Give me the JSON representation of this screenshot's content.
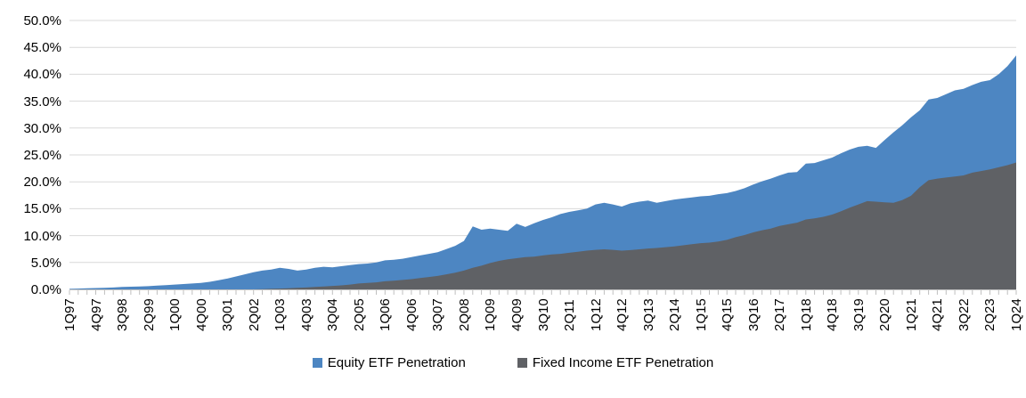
{
  "page": {
    "background": "#FFFFFF",
    "text_color": "#000000"
  },
  "chart_data": {
    "type": "area",
    "title": "",
    "grid": true,
    "grid_color": "#D9D9D9",
    "axis_color": "#BFBFBF",
    "legend_position": "bottom-center",
    "overlap_note": "overlaid areas (not stacked); Fixed Income drawn in front of Equity",
    "y_axis": {
      "min": 0,
      "max": 50,
      "step": 5,
      "unit": "%",
      "tick_labels_top_to_bottom": [
        "50.0%",
        "45.0%",
        "40.0%",
        "35.0%",
        "30.0%",
        "25.0%",
        "20.0%",
        "15.0%",
        "10.0%",
        "5.0%",
        "0.0%"
      ]
    },
    "x_axis": {
      "frequency": "quarterly",
      "start": "1Q97",
      "end": "1Q24",
      "points": 109,
      "label_every_n_points": 3,
      "tick_labels": [
        "1Q97",
        "4Q97",
        "3Q98",
        "2Q99",
        "1Q00",
        "4Q00",
        "3Q01",
        "2Q02",
        "1Q03",
        "4Q03",
        "3Q04",
        "2Q05",
        "1Q06",
        "4Q06",
        "3Q07",
        "2Q08",
        "1Q09",
        "4Q09",
        "3Q10",
        "2Q11",
        "1Q12",
        "4Q12",
        "3Q13",
        "2Q14",
        "1Q15",
        "4Q15",
        "3Q16",
        "2Q17",
        "1Q18",
        "4Q18",
        "3Q19",
        "2Q20",
        "1Q21",
        "4Q21",
        "3Q22",
        "2Q23",
        "1Q24"
      ]
    },
    "series": [
      {
        "name": "Equity ETF Penetration",
        "color": "#4D86C2",
        "values": [
          0.1,
          0.15,
          0.2,
          0.25,
          0.3,
          0.35,
          0.45,
          0.5,
          0.55,
          0.6,
          0.7,
          0.8,
          0.9,
          1.0,
          1.1,
          1.2,
          1.4,
          1.7,
          2.0,
          2.4,
          2.8,
          3.2,
          3.5,
          3.7,
          4.0,
          3.8,
          3.5,
          3.7,
          4.0,
          4.2,
          4.1,
          4.3,
          4.5,
          4.7,
          4.8,
          5.0,
          5.4,
          5.5,
          5.7,
          6.0,
          6.3,
          6.6,
          6.9,
          7.5,
          8.1,
          9.0,
          11.7,
          11.1,
          11.3,
          11.1,
          10.9,
          12.2,
          11.6,
          12.3,
          12.9,
          13.4,
          14.0,
          14.4,
          14.7,
          15.0,
          15.8,
          16.1,
          15.8,
          15.4,
          16.0,
          16.3,
          16.5,
          16.1,
          16.4,
          16.7,
          16.9,
          17.1,
          17.3,
          17.4,
          17.7,
          17.9,
          18.3,
          18.8,
          19.5,
          20.1,
          20.6,
          21.2,
          21.7,
          21.8,
          23.4,
          23.5,
          24.0,
          24.5,
          25.3,
          26.0,
          26.5,
          26.7,
          26.3,
          27.8,
          29.2,
          30.5,
          32.0,
          33.3,
          35.3,
          35.6,
          36.3,
          37.0,
          37.3,
          38.0,
          38.6,
          38.9,
          40.0,
          41.5,
          43.5
        ]
      },
      {
        "name": "Fixed Income ETF Penetration",
        "color": "#5F6165",
        "values": [
          0,
          0,
          0,
          0,
          0,
          0,
          0,
          0,
          0,
          0,
          0,
          0,
          0,
          0,
          0,
          0,
          0,
          0,
          0,
          0,
          0.0,
          0.0,
          0.05,
          0.1,
          0.15,
          0.2,
          0.3,
          0.35,
          0.45,
          0.55,
          0.65,
          0.75,
          0.9,
          1.1,
          1.2,
          1.3,
          1.5,
          1.6,
          1.75,
          1.9,
          2.1,
          2.3,
          2.5,
          2.8,
          3.1,
          3.5,
          4.0,
          4.4,
          4.9,
          5.3,
          5.6,
          5.8,
          6.0,
          6.1,
          6.3,
          6.5,
          6.6,
          6.8,
          7.0,
          7.2,
          7.35,
          7.45,
          7.35,
          7.2,
          7.3,
          7.45,
          7.6,
          7.7,
          7.85,
          8.0,
          8.2,
          8.4,
          8.6,
          8.7,
          8.9,
          9.2,
          9.7,
          10.1,
          10.6,
          11.0,
          11.3,
          11.8,
          12.1,
          12.4,
          13.0,
          13.2,
          13.5,
          13.9,
          14.5,
          15.2,
          15.8,
          16.4,
          16.3,
          16.2,
          16.1,
          16.6,
          17.4,
          19.0,
          20.3,
          20.6,
          20.8,
          21.0,
          21.2,
          21.7,
          22.0,
          22.3,
          22.7,
          23.1,
          23.6
        ]
      }
    ]
  },
  "legend": {
    "equity_label": "Equity ETF Penetration",
    "fixed_income_label": "Fixed Income ETF Penetration"
  }
}
